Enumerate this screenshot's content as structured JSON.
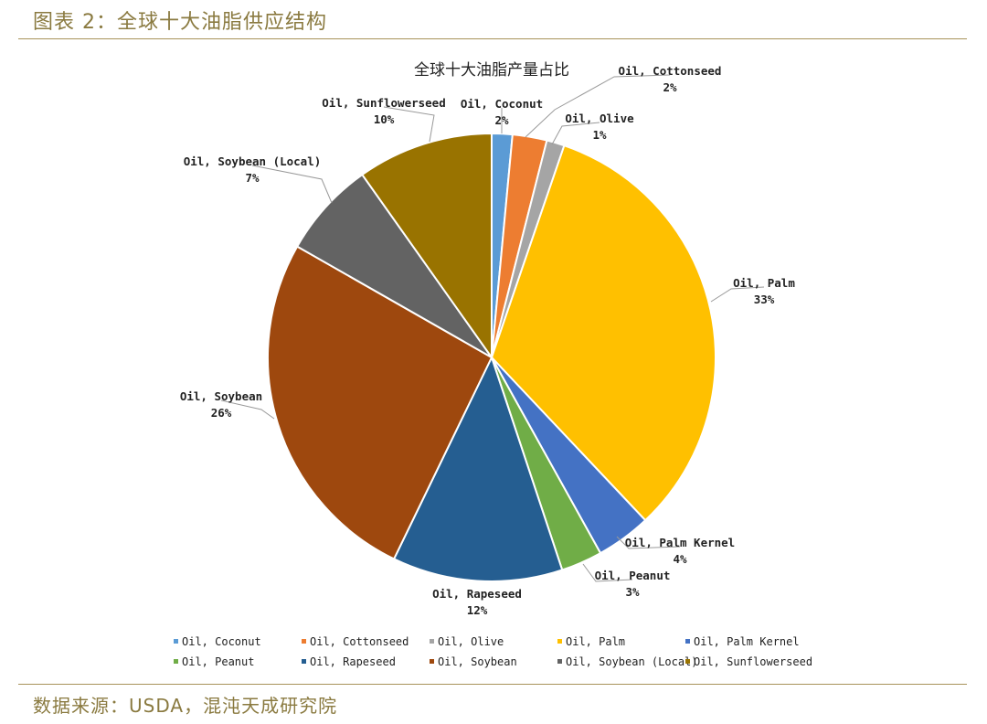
{
  "figure": {
    "title": "图表 2：全球十大油脂供应结构",
    "source": "数据来源：USDA，混沌天成研究院"
  },
  "chart_data": {
    "type": "pie",
    "title": "全球十大油脂产量占比",
    "legend_position": "bottom",
    "slices": [
      {
        "name": "Oil, Coconut",
        "value": 1.5,
        "label": "2%",
        "color": "#5b9bd5"
      },
      {
        "name": "Oil, Cottonseed",
        "value": 2.5,
        "label": "2%",
        "color": "#ed7d31"
      },
      {
        "name": "Oil, Olive",
        "value": 1.3,
        "label": "1%",
        "color": "#a5a5a5"
      },
      {
        "name": "Oil, Palm",
        "value": 33.0,
        "label": "33%",
        "color": "#ffc000"
      },
      {
        "name": "Oil, Palm Kernel",
        "value": 4.0,
        "label": "4%",
        "color": "#4472c4"
      },
      {
        "name": "Oil, Peanut",
        "value": 3.0,
        "label": "3%",
        "color": "#70ad47"
      },
      {
        "name": "Oil, Rapeseed",
        "value": 12.4,
        "label": "12%",
        "color": "#255e91"
      },
      {
        "name": "Oil, Soybean",
        "value": 26.3,
        "label": "26%",
        "color": "#9e480e"
      },
      {
        "name": "Oil, Soybean (Local)",
        "value": 7.0,
        "label": "7%",
        "color": "#636363"
      },
      {
        "name": "Oil, Sunflowerseed",
        "value": 9.9,
        "label": "10%",
        "color": "#997300"
      }
    ]
  }
}
